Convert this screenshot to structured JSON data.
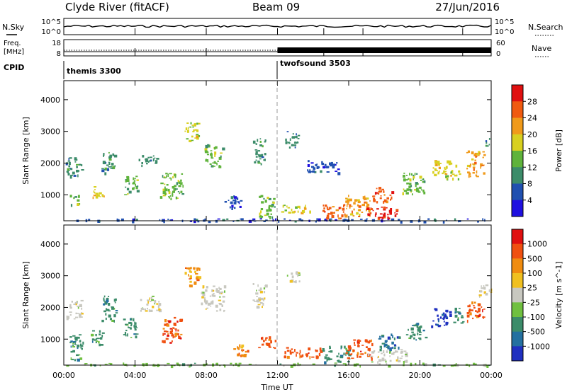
{
  "header": {
    "station": "Clyde River (fitACF)",
    "beam": "Beam 09",
    "date": "27/Jun/2016"
  },
  "noise_panel": {
    "left_label": "N.Sky",
    "right_label": "N.Search",
    "left_ticks": [
      "10^5",
      "10^0"
    ],
    "right_ticks": [
      "10^5",
      "10^0"
    ]
  },
  "freq_panel": {
    "left_label_top": "Freq.",
    "left_label_bottom": "[MHz]",
    "right_label": "Nave",
    "left_ticks": [
      "18",
      "8"
    ],
    "right_ticks": [
      "60",
      "0"
    ]
  },
  "cpid_panel": {
    "label": "CPID",
    "modes": [
      {
        "name": "themis 3300",
        "start_hour": 0
      },
      {
        "name": "twofsound 3503",
        "start_hour": 12
      }
    ]
  },
  "chart_data": [
    {
      "type": "heatmap",
      "title": "Power",
      "xlabel": "",
      "ylabel": "Slant Range [km]",
      "xlim": [
        0,
        24
      ],
      "ylim": [
        180,
        4600
      ],
      "y_ticks": [
        1000,
        2000,
        3000,
        4000
      ],
      "colorbar": {
        "label": "Power [dB]",
        "ticks": [
          "4",
          "8",
          "12",
          "16",
          "20",
          "24",
          "28"
        ],
        "colors": [
          "#1f10e0",
          "#2050b0",
          "#3c8c6a",
          "#5fb33b",
          "#d8d020",
          "#f09a1a",
          "#f05a10",
          "#e01010"
        ]
      },
      "regions": [
        {
          "x": [
            0.0,
            24.0
          ],
          "y": [
            180,
            260
          ],
          "c": 1
        },
        {
          "x": [
            0.1,
            1.0
          ],
          "y": [
            1600,
            2250
          ],
          "c": 2
        },
        {
          "x": [
            0.3,
            0.8
          ],
          "y": [
            700,
            1000
          ],
          "c": 3
        },
        {
          "x": [
            1.6,
            2.3
          ],
          "y": [
            900,
            1300
          ],
          "c": 4
        },
        {
          "x": [
            2.1,
            2.9
          ],
          "y": [
            1700,
            2400
          ],
          "c": 2
        },
        {
          "x": [
            3.3,
            4.1
          ],
          "y": [
            1000,
            1600
          ],
          "c": 3
        },
        {
          "x": [
            4.2,
            5.2
          ],
          "y": [
            1900,
            2300
          ],
          "c": 2
        },
        {
          "x": [
            5.4,
            6.7
          ],
          "y": [
            900,
            1700
          ],
          "c": 3
        },
        {
          "x": [
            6.7,
            7.6
          ],
          "y": [
            2700,
            3300
          ],
          "c": 4
        },
        {
          "x": [
            7.9,
            8.9
          ],
          "y": [
            1900,
            2600
          ],
          "c": 3
        },
        {
          "x": [
            8.9,
            9.9
          ],
          "y": [
            600,
            1000
          ],
          "c": 1
        },
        {
          "x": [
            10.6,
            11.3
          ],
          "y": [
            2000,
            2800
          ],
          "c": 2
        },
        {
          "x": [
            10.9,
            11.8
          ],
          "y": [
            300,
            1000
          ],
          "c": 3
        },
        {
          "x": [
            12.2,
            13.8
          ],
          "y": [
            450,
            700
          ],
          "c": 4
        },
        {
          "x": [
            12.4,
            13.2
          ],
          "y": [
            2500,
            3100
          ],
          "c": 2
        },
        {
          "x": [
            13.6,
            15.4
          ],
          "y": [
            1700,
            2100
          ],
          "c": 1
        },
        {
          "x": [
            14.5,
            15.7
          ],
          "y": [
            280,
            700
          ],
          "c": 6
        },
        {
          "x": [
            15.7,
            17.2
          ],
          "y": [
            300,
            1000
          ],
          "c": 5
        },
        {
          "x": [
            16.9,
            18.7
          ],
          "y": [
            280,
            650
          ],
          "c": 7
        },
        {
          "x": [
            17.3,
            18.4
          ],
          "y": [
            800,
            1300
          ],
          "c": 6
        },
        {
          "x": [
            19.0,
            20.3
          ],
          "y": [
            1000,
            1700
          ],
          "c": 3
        },
        {
          "x": [
            20.7,
            22.2
          ],
          "y": [
            1500,
            2100
          ],
          "c": 4
        },
        {
          "x": [
            22.6,
            23.6
          ],
          "y": [
            1600,
            2400
          ],
          "c": 5
        },
        {
          "x": [
            23.6,
            24.0
          ],
          "y": [
            2500,
            2800
          ],
          "c": 2
        }
      ]
    },
    {
      "type": "heatmap",
      "title": "Velocity",
      "xlabel": "Time UT",
      "ylabel": "Slant Range [km]",
      "xlim": [
        0,
        24
      ],
      "ylim": [
        180,
        4600
      ],
      "x_ticks": [
        "00:00",
        "04:00",
        "08:00",
        "12:00",
        "16:00",
        "20:00",
        "00:00"
      ],
      "y_ticks": [
        1000,
        2000,
        3000,
        4000
      ],
      "colorbar": {
        "label": "Velocity [m s^-1]",
        "ticks": [
          "1000",
          "500",
          "100",
          "25",
          "-25",
          "-100",
          "-500",
          "-1000"
        ],
        "colors": [
          "#2030c0",
          "#2470a0",
          "#3c8c6a",
          "#70c040",
          "#c8c8c0",
          "#f0c020",
          "#f08c10",
          "#f05010",
          "#e01010"
        ]
      },
      "regions": [
        {
          "x": [
            0.0,
            24.0
          ],
          "y": [
            180,
            260
          ],
          "c": 3
        },
        {
          "x": [
            0.1,
            1.0
          ],
          "y": [
            1600,
            2250
          ],
          "c": 4
        },
        {
          "x": [
            0.3,
            1.1
          ],
          "y": [
            300,
            1200
          ],
          "c": 2
        },
        {
          "x": [
            1.4,
            2.2
          ],
          "y": [
            800,
            1300
          ],
          "c": 2
        },
        {
          "x": [
            2.1,
            2.9
          ],
          "y": [
            1600,
            2400
          ],
          "c": 2
        },
        {
          "x": [
            3.3,
            4.1
          ],
          "y": [
            1000,
            1700
          ],
          "c": 2
        },
        {
          "x": [
            4.2,
            5.4
          ],
          "y": [
            1900,
            2400
          ],
          "c": 4
        },
        {
          "x": [
            5.5,
            6.6
          ],
          "y": [
            900,
            1700
          ],
          "c": 7
        },
        {
          "x": [
            6.7,
            7.6
          ],
          "y": [
            2700,
            3300
          ],
          "c": 6
        },
        {
          "x": [
            7.7,
            9.0
          ],
          "y": [
            1900,
            2700
          ],
          "c": 4
        },
        {
          "x": [
            9.5,
            10.3
          ],
          "y": [
            500,
            900
          ],
          "c": 6
        },
        {
          "x": [
            10.6,
            11.3
          ],
          "y": [
            2000,
            2800
          ],
          "c": 4
        },
        {
          "x": [
            10.9,
            11.9
          ],
          "y": [
            700,
            1100
          ],
          "c": 7
        },
        {
          "x": [
            12.2,
            14.5
          ],
          "y": [
            450,
            750
          ],
          "c": 7
        },
        {
          "x": [
            12.4,
            13.2
          ],
          "y": [
            2800,
            3200
          ],
          "c": 4
        },
        {
          "x": [
            14.5,
            16.0
          ],
          "y": [
            300,
            800
          ],
          "c": 2
        },
        {
          "x": [
            15.8,
            17.3
          ],
          "y": [
            400,
            1000
          ],
          "c": 7
        },
        {
          "x": [
            17.0,
            19.2
          ],
          "y": [
            300,
            700
          ],
          "c": 4
        },
        {
          "x": [
            17.6,
            18.8
          ],
          "y": [
            700,
            1200
          ],
          "c": 1
        },
        {
          "x": [
            19.2,
            20.3
          ],
          "y": [
            1000,
            1600
          ],
          "c": 2
        },
        {
          "x": [
            20.6,
            21.7
          ],
          "y": [
            1400,
            2000
          ],
          "c": 0
        },
        {
          "x": [
            21.8,
            22.4
          ],
          "y": [
            1500,
            2000
          ],
          "c": 2
        },
        {
          "x": [
            22.6,
            23.6
          ],
          "y": [
            1600,
            2200
          ],
          "c": 7
        },
        {
          "x": [
            23.3,
            24.0
          ],
          "y": [
            2400,
            2800
          ],
          "c": 4
        }
      ]
    }
  ]
}
